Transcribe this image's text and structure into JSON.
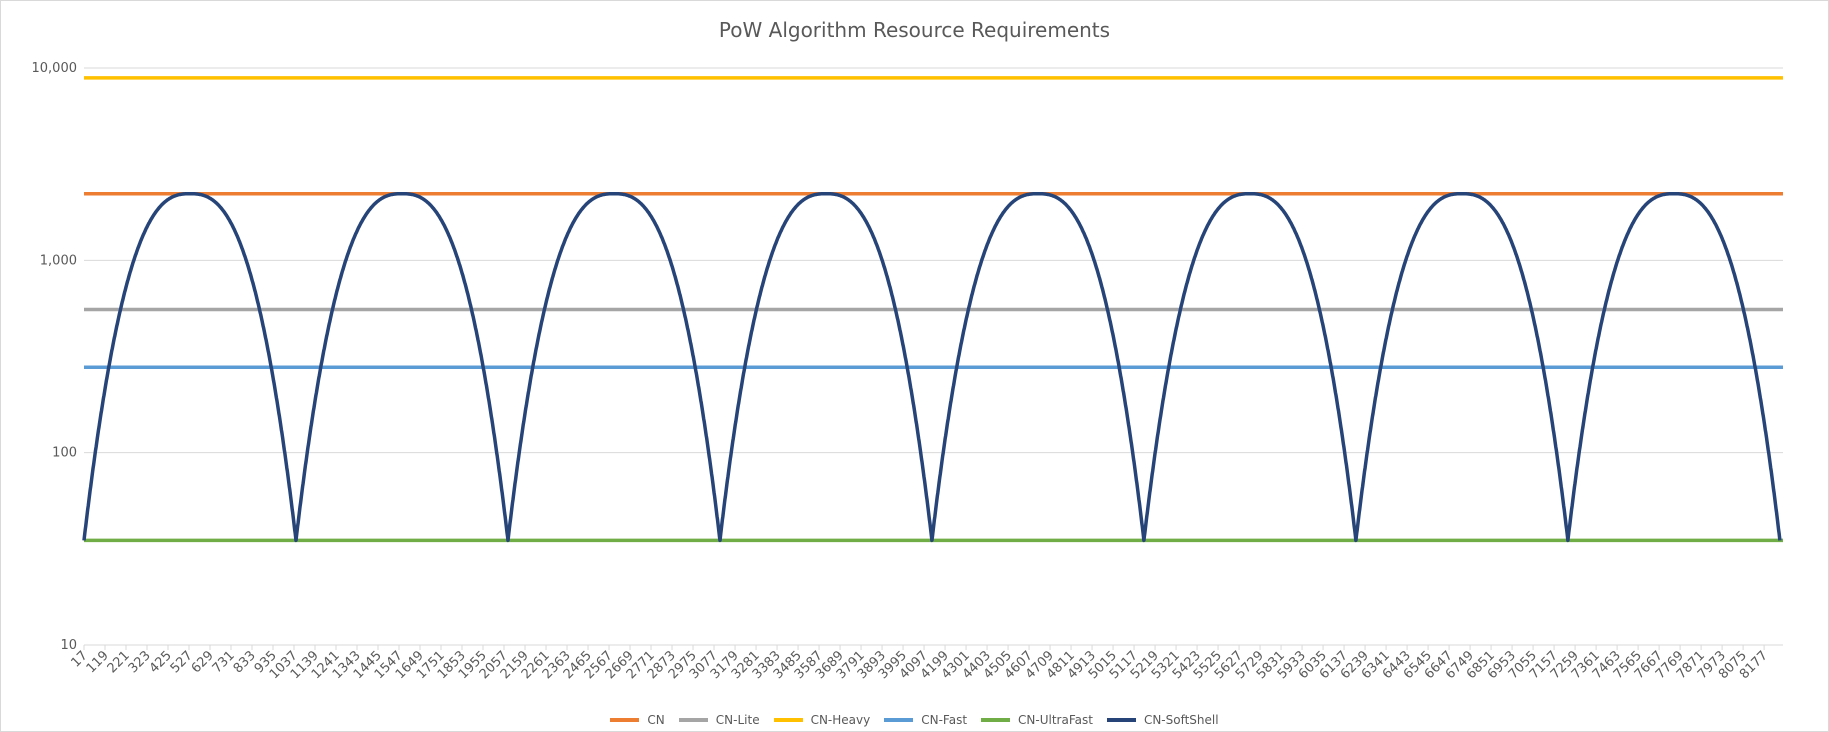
{
  "chart_data": {
    "type": "line",
    "title": "PoW Algorithm Resource Requirements",
    "xlabel": "",
    "ylabel": "",
    "y_scale": "log",
    "ylim": [
      10,
      10000
    ],
    "y_ticks": [
      "10",
      "100",
      "1,000",
      "10,000"
    ],
    "y_tick_values": [
      10,
      100,
      1000,
      10000
    ],
    "grid": true,
    "legend_position": "bottom",
    "x_range": [
      17,
      8192
    ],
    "x_tick_labels": [
      "17",
      "119",
      "221",
      "323",
      "425",
      "527",
      "629",
      "731",
      "833",
      "935",
      "1037",
      "1139",
      "1241",
      "1343",
      "1445",
      "1547",
      "1649",
      "1751",
      "1853",
      "1955",
      "2057",
      "2159",
      "2261",
      "2363",
      "2465",
      "2567",
      "2669",
      "2771",
      "2873",
      "2975",
      "3077",
      "3179",
      "3281",
      "3383",
      "3485",
      "3587",
      "3689",
      "3791",
      "3893",
      "3995",
      "4097",
      "4199",
      "4301",
      "4403",
      "4505",
      "4607",
      "4709",
      "4811",
      "4913",
      "5015",
      "5117",
      "5219",
      "5321",
      "5423",
      "5525",
      "5627",
      "5729",
      "5831",
      "5933",
      "6035",
      "6137",
      "6239",
      "6341",
      "6443",
      "6545",
      "6647",
      "6749",
      "6851",
      "6953",
      "7055",
      "7157",
      "7259",
      "7361",
      "7463",
      "7565",
      "7667",
      "7769",
      "7871",
      "7973",
      "8075",
      "8177"
    ],
    "series": [
      {
        "name": "CN",
        "color": "#ED7D31",
        "constant": 2220
      },
      {
        "name": "CN-Lite",
        "color": "#A5A5A5",
        "constant": 555
      },
      {
        "name": "CN-Heavy",
        "color": "#FFC000",
        "constant": 8880
      },
      {
        "name": "CN-Fast",
        "color": "#5B9BD5",
        "constant": 278
      },
      {
        "name": "CN-UltraFast",
        "color": "#70AD47",
        "constant": 35
      },
      {
        "name": "CN-SoftShell",
        "color": "#264478",
        "periodic": {
          "period": 1020,
          "min": 35,
          "max": 2220,
          "minima_x": [
            17,
            1037,
            2057,
            3077,
            4097,
            5117,
            6137,
            7157,
            8177
          ],
          "maxima_x": [
            527,
            1547,
            2567,
            3587,
            4607,
            5627,
            6647,
            7667
          ]
        }
      }
    ]
  }
}
